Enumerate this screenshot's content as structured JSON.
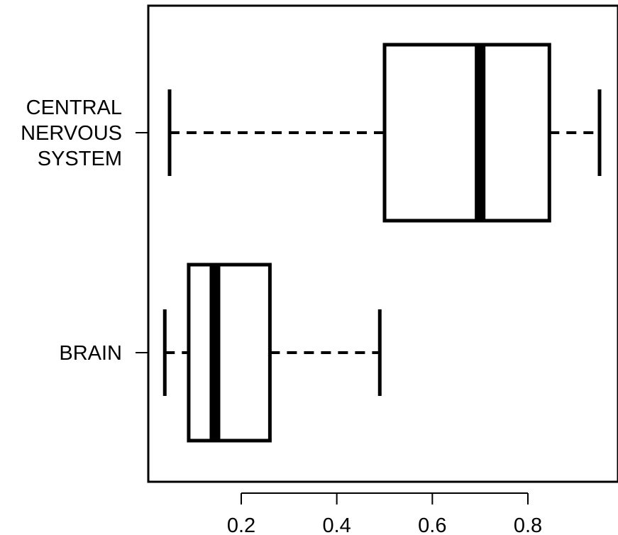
{
  "chart_data": {
    "type": "boxplot",
    "orientation": "horizontal",
    "title": "",
    "xlabel": "",
    "ylabel": "",
    "xlim": [
      0.0,
      1.0
    ],
    "x_ticks": [
      0.2,
      0.4,
      0.6,
      0.8
    ],
    "x_tick_labels": [
      "0.2",
      "0.4",
      "0.6",
      "0.8"
    ],
    "grid": false,
    "categories": [
      {
        "key": "brain",
        "label_lines": [
          "BRAIN"
        ],
        "whisker_low": 0.04,
        "q1": 0.09,
        "median": 0.145,
        "q3": 0.26,
        "whisker_high": 0.49
      },
      {
        "key": "cns",
        "label_lines": [
          "CENTRAL",
          "NERVOUS",
          "SYSTEM"
        ],
        "whisker_low": 0.05,
        "q1": 0.5,
        "median": 0.7,
        "q3": 0.845,
        "whisker_high": 0.95
      }
    ]
  }
}
